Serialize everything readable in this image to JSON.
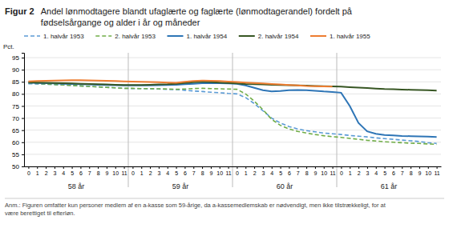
{
  "chart_data": {
    "type": "line",
    "title": "Figur 2",
    "subtitle": "Andel lønmodtagere blandt ufaglærte og faglærte (lønmodtagerandel) fordelt på\nfødselsårgange og alder i år og måneder",
    "y_label": "Pct.",
    "x_group_labels": [
      "58 år",
      "59 år",
      "60 år",
      "61 år"
    ],
    "annotation": "Anm.: Figuren omfatter kun personer medlem af en a-kasse som 59-årige, da a-kassemedlemskab er nødvendigt, men ikke tilstrækkeligt, for at\nvære berettiget til efterløn.",
    "categories": [
      "0",
      "1",
      "2",
      "3",
      "4",
      "5",
      "6",
      "7",
      "8",
      "9",
      "10",
      "11",
      "0",
      "1",
      "2",
      "3",
      "4",
      "5",
      "6",
      "7",
      "8",
      "9",
      "10",
      "11",
      "0",
      "1",
      "2",
      "3",
      "4",
      "5",
      "6",
      "7",
      "8",
      "9",
      "10",
      "11",
      "0",
      "1",
      "2",
      "3",
      "4",
      "5",
      "6",
      "7",
      "8",
      "9",
      "10",
      "11"
    ],
    "ylim": [
      50,
      97
    ],
    "yticks": [
      50,
      55,
      60,
      65,
      70,
      75,
      80,
      85,
      90,
      95
    ],
    "grid": true,
    "legend": "top",
    "series": [
      {
        "name": "1. halvår 1953",
        "color": "#5B9BD5",
        "line_style": "dashed",
        "values": [
          84.2,
          84.1,
          84.0,
          83.9,
          83.7,
          83.5,
          83.3,
          83.1,
          82.9,
          82.7,
          82.5,
          82.3,
          82.2,
          82.2,
          82.1,
          82.0,
          81.9,
          81.8,
          81.5,
          81.2,
          81.0,
          80.7,
          80.5,
          80.2,
          80.0,
          78.5,
          76.0,
          73.0,
          70.0,
          68.0,
          66.5,
          65.5,
          64.8,
          64.3,
          63.8,
          63.5,
          63.2,
          62.8,
          62.5,
          62.2,
          61.8,
          61.5,
          61.2,
          60.9,
          60.6,
          60.3,
          59.8,
          59.5
        ]
      },
      {
        "name": "2. halvår 1953",
        "color": "#70AD47",
        "line_style": "dashed",
        "values": [
          84.4,
          84.3,
          84.1,
          83.9,
          83.7,
          83.5,
          83.3,
          83.1,
          82.9,
          82.7,
          82.5,
          82.3,
          82.3,
          82.2,
          82.2,
          82.1,
          82.0,
          81.9,
          82.0,
          82.2,
          82.3,
          82.2,
          82.1,
          82.0,
          81.9,
          80.0,
          77.0,
          73.5,
          69.5,
          67.0,
          65.5,
          64.5,
          63.8,
          63.2,
          62.7,
          62.3,
          62.0,
          61.6,
          61.2,
          60.8,
          60.5,
          60.2,
          60.0,
          59.8,
          59.6,
          59.5,
          59.3,
          59.1
        ]
      },
      {
        "name": "1. halvår 1954",
        "color": "#2E75B6",
        "line_style": "solid",
        "values": [
          84.6,
          84.5,
          84.4,
          84.3,
          84.2,
          84.1,
          84.0,
          83.9,
          83.8,
          83.7,
          83.6,
          83.5,
          83.5,
          83.5,
          83.5,
          83.6,
          83.7,
          83.8,
          84.0,
          84.2,
          84.4,
          84.5,
          84.4,
          84.3,
          84.2,
          83.5,
          82.5,
          81.5,
          81.0,
          81.2,
          81.5,
          81.6,
          81.5,
          81.3,
          81.0,
          80.8,
          80.5,
          75.0,
          68.0,
          64.5,
          63.5,
          63.0,
          62.8,
          62.6,
          62.5,
          62.4,
          62.3,
          62.2
        ]
      },
      {
        "name": "2. halvår 1954",
        "color": "#375623",
        "line_style": "solid",
        "values": [
          84.8,
          84.7,
          84.6,
          84.5,
          84.4,
          84.3,
          84.2,
          84.1,
          84.0,
          83.9,
          83.8,
          83.7,
          83.7,
          83.7,
          83.8,
          83.9,
          84.0,
          84.2,
          84.5,
          84.8,
          85.0,
          84.9,
          84.7,
          84.5,
          84.3,
          84.1,
          84.0,
          83.9,
          83.8,
          83.7,
          83.6,
          83.5,
          83.4,
          83.3,
          83.2,
          83.1,
          83.0,
          82.8,
          82.6,
          82.4,
          82.2,
          82.0,
          81.9,
          81.8,
          81.7,
          81.6,
          81.5,
          81.4
        ]
      },
      {
        "name": "1. halvår 1955",
        "color": "#ED7D31",
        "line_style": "solid",
        "values": [
          85.2,
          85.3,
          85.4,
          85.5,
          85.6,
          85.7,
          85.7,
          85.6,
          85.5,
          85.4,
          85.3,
          85.2,
          85.1,
          85.0,
          84.9,
          84.8,
          84.7,
          84.6,
          85.0,
          85.3,
          85.5,
          85.4,
          85.3,
          85.1,
          84.9,
          84.7,
          84.5,
          84.3,
          84.1,
          83.9,
          83.7,
          83.5,
          83.3,
          83.2,
          83.1,
          83.0,
          null,
          null,
          null,
          null,
          null,
          null,
          null,
          null,
          null,
          null,
          null,
          null
        ]
      }
    ]
  }
}
